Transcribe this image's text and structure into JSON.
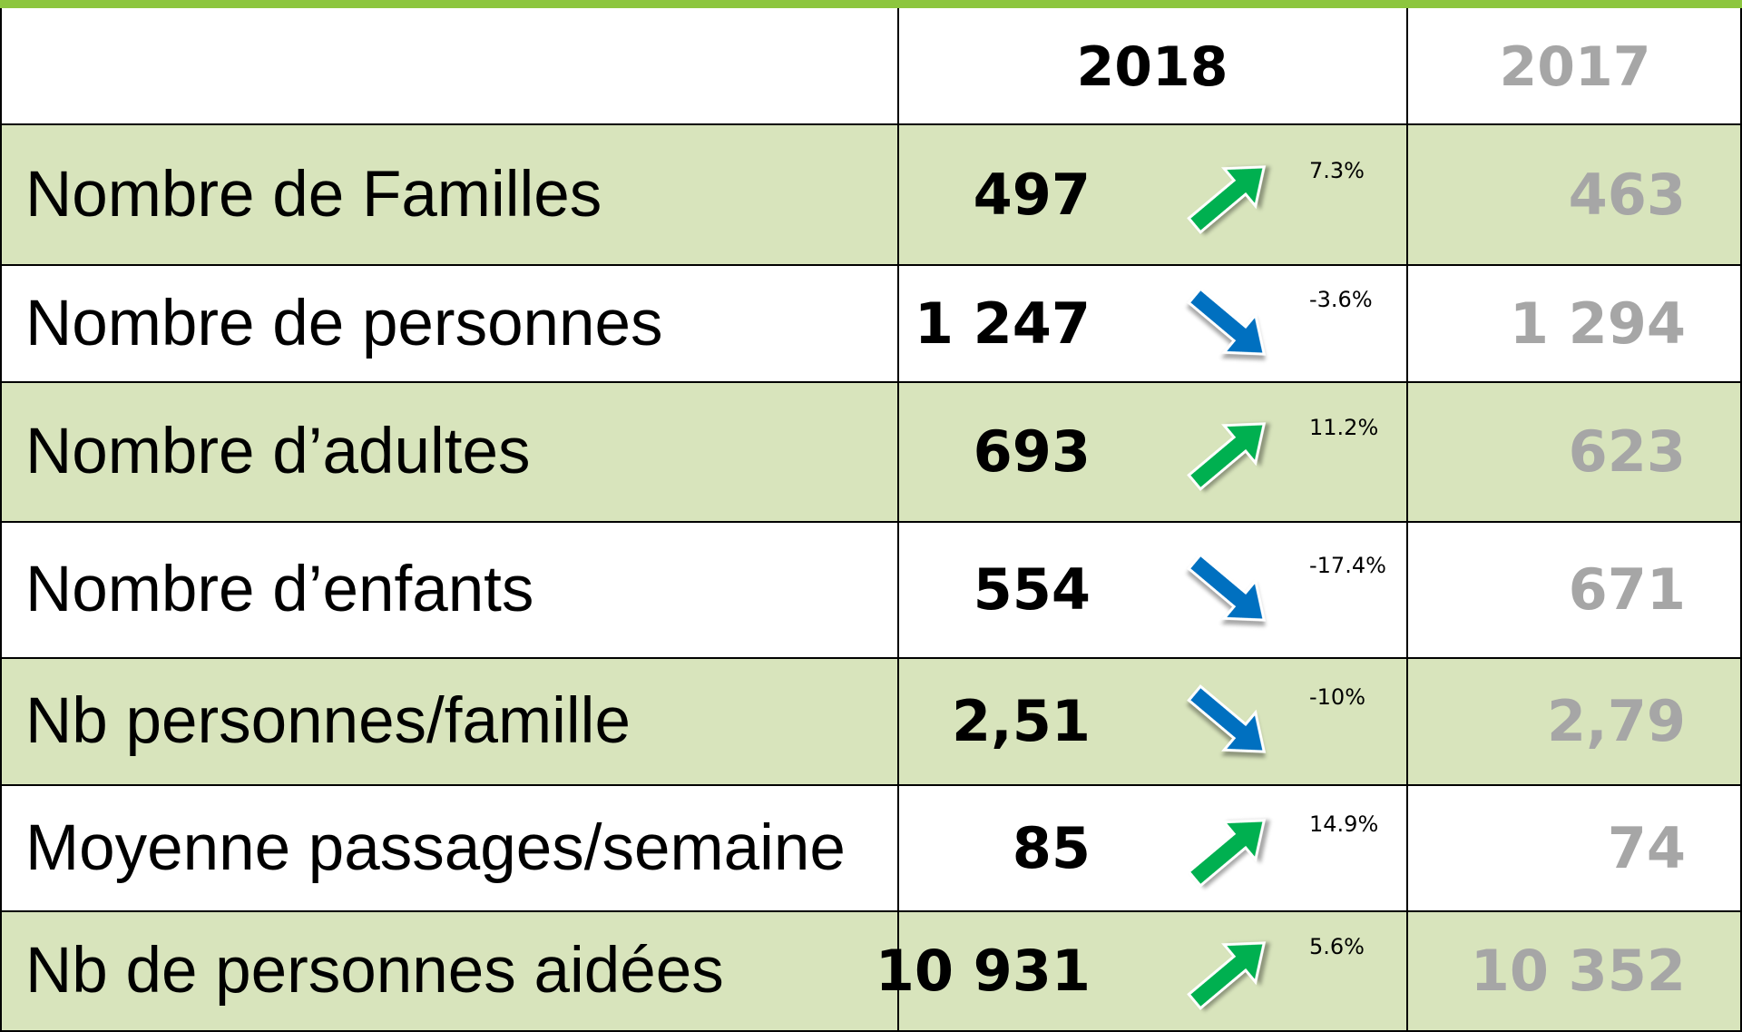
{
  "table": {
    "columns": [
      "2018",
      "2017"
    ],
    "rows": [
      {
        "label": "Nombre de Familles",
        "current": "497",
        "change": "7.3%",
        "previous": "463"
      },
      {
        "label": "Nombre de personnes",
        "current": "1 247",
        "change": "-3.6%",
        "previous": "1 294"
      },
      {
        "label": "Nombre d’adultes",
        "current": "693",
        "change": "11.2%",
        "previous": "623"
      },
      {
        "label": "Nombre d’enfants",
        "current": "554",
        "change": "-17.4%",
        "previous": "671"
      },
      {
        "label": "Nb personnes/famille",
        "current": "2,51",
        "change": "-10%",
        "previous": "2,79"
      },
      {
        "label": "Moyenne passages/semaine",
        "current": "85",
        "change": "14.9%",
        "previous": "74"
      },
      {
        "label": "Nb de personnes aidées",
        "current": "10 931",
        "change": "5.6%",
        "previous": "10 352"
      }
    ]
  }
}
